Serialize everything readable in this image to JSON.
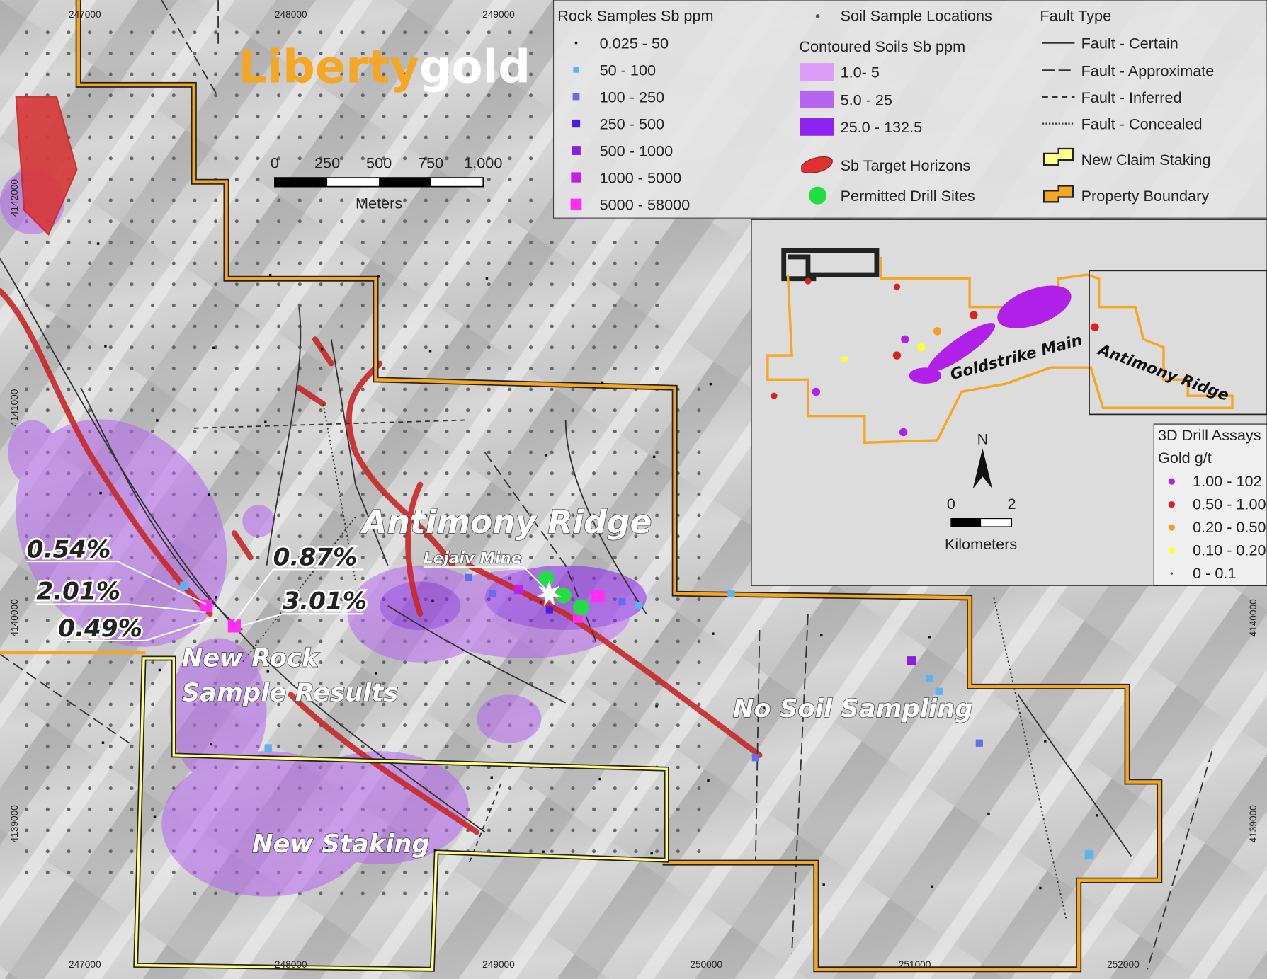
{
  "logo": {
    "text_liberty": "Liberty",
    "text_gold": "gold",
    "color_liberty": "#f5a623",
    "color_gold": "#ffffff"
  },
  "scale_bar": {
    "ticks": [
      "0",
      "250",
      "500",
      "750",
      "1,000"
    ],
    "unit": "Meters"
  },
  "grid_ticks": {
    "top_x": [
      "247000",
      "248000",
      "249000"
    ],
    "bottom_x": [
      "247000",
      "248000",
      "249000",
      "250000",
      "251000",
      "252000"
    ],
    "left_y": [
      "4142000",
      "4141000",
      "4140000",
      "4139000"
    ],
    "right_y": [
      "4140000",
      "4139000"
    ]
  },
  "legend": {
    "rock_title": "Rock Samples Sb ppm",
    "rock_items": [
      {
        "label": "0.025 - 50",
        "color": "#111111"
      },
      {
        "label": "50 - 100",
        "color": "#5ab4f0"
      },
      {
        "label": "100 - 250",
        "color": "#6470e8"
      },
      {
        "label": "250 - 500",
        "color": "#4a1ee0"
      },
      {
        "label": "500 - 1000",
        "color": "#8a1ee0"
      },
      {
        "label": "1000 - 5000",
        "color": "#c21ee6"
      },
      {
        "label": "5000 - 58000",
        "color": "#ff2ef0"
      }
    ],
    "soil_locations": "Soil Sample Locations",
    "soils_title": "Contoured Soils Sb ppm",
    "soil_items": [
      {
        "label": "1.0- 5",
        "color": "#dc9cf8"
      },
      {
        "label": "5.0 - 25",
        "color": "#b565ee"
      },
      {
        "label": "25.0 - 132.5",
        "color": "#8e22ee"
      }
    ],
    "sb_target": "Sb Target Horizons",
    "drill_sites": "Permitted Drill Sites",
    "fault_title": "Fault Type",
    "fault_items": [
      "Fault - Certain",
      "Fault - Approximate",
      "Fault - Inferred",
      "Fault - Concealed"
    ],
    "new_claim": "New Claim Staking",
    "property": "Property Boundary",
    "colors": {
      "sb_target": "#e03030",
      "drill": "#22dd44",
      "new_claim": "#ffff88",
      "property": "#f5a623"
    }
  },
  "map_labels": {
    "antimony_ridge": "Antimony Ridge",
    "lejaiv_mine": "Lejaiv Mine",
    "new_rock": "New Rock",
    "sample_results": "Sample Results",
    "no_soil": "No Soil Sampling",
    "new_staking": "New Staking",
    "percentages": [
      "0.54%",
      "2.01%",
      "0.49%",
      "0.87%",
      "3.01%"
    ]
  },
  "inset": {
    "goldstrike": "Goldstrike Main",
    "antimony": "Antimony Ridge",
    "north": "N",
    "scale_ticks": [
      "0",
      "2"
    ],
    "scale_unit": "Kilometers",
    "assay_title": "3D Drill Assays",
    "assay_subtitle": "Gold g/t",
    "assay_items": [
      {
        "label": "1.00 - 102",
        "color": "#b020e8"
      },
      {
        "label": "0.50 - 1.00",
        "color": "#e02020"
      },
      {
        "label": "0.20 - 0.50",
        "color": "#f5a020"
      },
      {
        "label": "0.10 - 0.20",
        "color": "#ffff30"
      },
      {
        "label": "0 - 0.1",
        "color": "#555555"
      }
    ]
  }
}
